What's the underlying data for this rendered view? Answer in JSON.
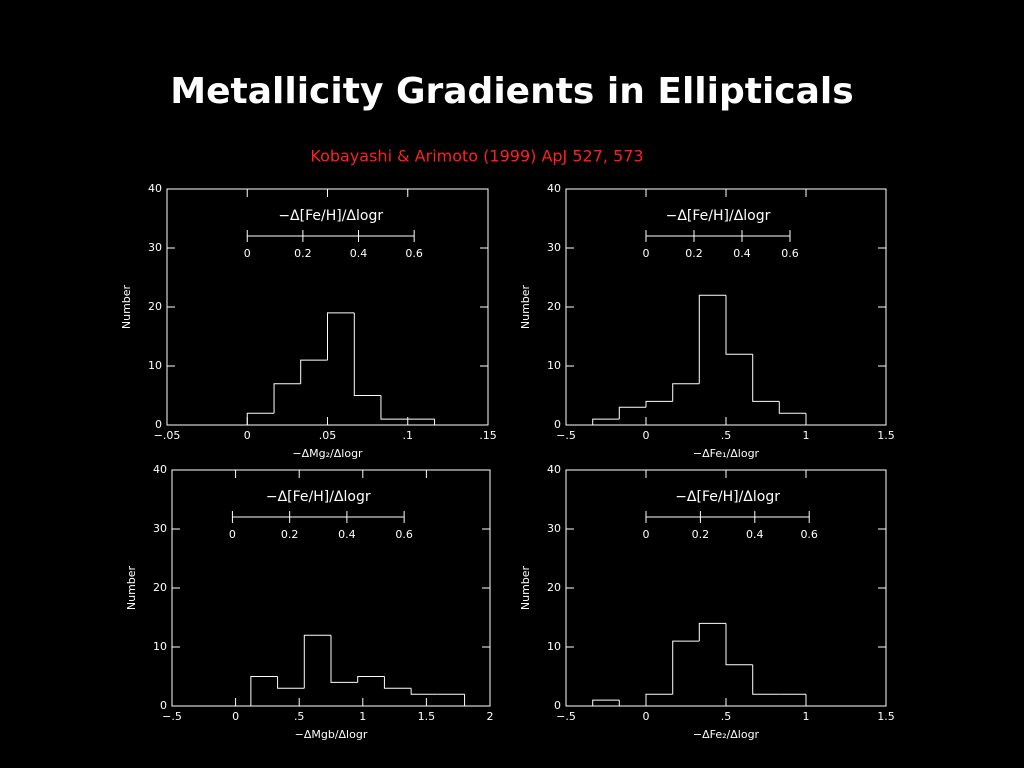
{
  "slide": {
    "title": "Metallicity Gradients in Ellipticals",
    "citation": "Kobayashi & Arimoto (1999) ApJ 527, 573"
  },
  "chart_data": [
    {
      "type": "histogram",
      "xlabel": "−ΔMg₂/Δlogr",
      "ylabel": "Number",
      "bins": [
        0,
        0.0167,
        0.0333,
        0.05,
        0.0667,
        0.0833,
        0.1,
        0.1167
      ],
      "counts": [
        2,
        7,
        11,
        19,
        5,
        1,
        1
      ],
      "xlim": [
        -0.05,
        0.15
      ],
      "xticks": [
        {
          "value": -0.05,
          "label": "−.05"
        },
        0,
        {
          "value": 0.05,
          "label": ".05"
        },
        {
          "value": 0.1,
          "label": ".1"
        },
        {
          "value": 0.15,
          "label": ".15"
        }
      ],
      "ylim": [
        0,
        40
      ],
      "yticks": [
        0,
        10,
        20,
        30,
        40
      ],
      "color": "#ffffff",
      "inset_axis": {
        "label": "−Δ[Fe/H]/Δlogr",
        "lim": [
          0,
          0.6
        ],
        "ticks": [
          0,
          0.2,
          0.4,
          0.6
        ]
      }
    },
    {
      "type": "histogram",
      "xlabel": "−ΔFe₁/Δlogr",
      "ylabel": "Number",
      "bins": [
        -0.333,
        -0.167,
        0,
        0.167,
        0.333,
        0.5,
        0.667,
        0.833,
        1.0
      ],
      "counts": [
        1,
        3,
        4,
        7,
        22,
        12,
        4,
        2
      ],
      "xlim": [
        -0.5,
        1.5
      ],
      "xticks": [
        {
          "value": -0.5,
          "label": "−.5"
        },
        0,
        {
          "value": 0.5,
          "label": ".5"
        },
        1,
        1.5
      ],
      "ylim": [
        0,
        40
      ],
      "yticks": [
        0,
        10,
        20,
        30,
        40
      ],
      "color": "#ffffff",
      "inset_axis": {
        "label": "−Δ[Fe/H]/Δlogr",
        "lim": [
          0,
          0.6
        ],
        "ticks": [
          0,
          0.2,
          0.4,
          0.6
        ]
      }
    },
    {
      "type": "histogram",
      "xlabel": "−ΔMgb/Δlogr",
      "ylabel": "Number",
      "bins": [
        0.12,
        0.33,
        0.54,
        0.75,
        0.96,
        1.17,
        1.38,
        1.59,
        1.8
      ],
      "counts": [
        5,
        3,
        12,
        4,
        5,
        3,
        2,
        2
      ],
      "xlim": [
        -0.5,
        2
      ],
      "xticks": [
        {
          "value": -0.5,
          "label": "−.5"
        },
        0,
        {
          "value": 0.5,
          "label": ".5"
        },
        1,
        1.5,
        2
      ],
      "ylim": [
        0,
        40
      ],
      "yticks": [
        0,
        10,
        20,
        30,
        40
      ],
      "color": "#ffffff",
      "inset_axis": {
        "label": "−Δ[Fe/H]/Δlogr",
        "lim": [
          0,
          0.6
        ],
        "ticks": [
          0,
          0.2,
          0.4,
          0.6
        ]
      }
    },
    {
      "type": "histogram",
      "xlabel": "−ΔFe₂/Δlogr",
      "ylabel": "Number",
      "bins": [
        -0.333,
        -0.167,
        0,
        0.167,
        0.333,
        0.5,
        0.667,
        0.833,
        1.0
      ],
      "counts": [
        1,
        0,
        2,
        11,
        14,
        7,
        2,
        2
      ],
      "xlim": [
        -0.5,
        1.5
      ],
      "xticks": [
        {
          "value": -0.5,
          "label": "−.5"
        },
        0,
        {
          "value": 0.5,
          "label": ".5"
        },
        1,
        1.5
      ],
      "ylim": [
        0,
        40
      ],
      "yticks": [
        0,
        10,
        20,
        30,
        40
      ],
      "color": "#ffffff",
      "inset_axis": {
        "label": "−Δ[Fe/H]/Δlogr",
        "lim": [
          0,
          0.6
        ],
        "ticks": [
          0,
          0.2,
          0.4,
          0.6
        ]
      }
    }
  ]
}
